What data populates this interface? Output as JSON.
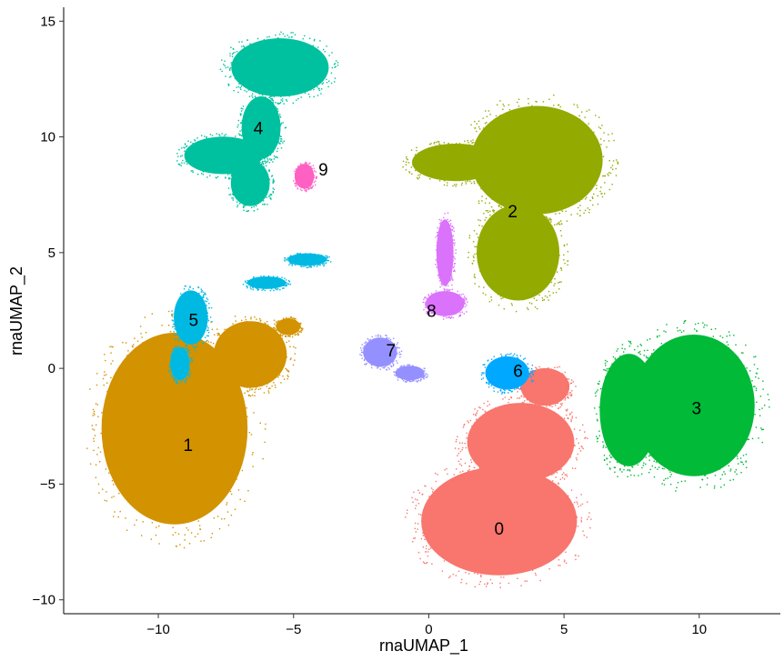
{
  "chart_data": {
    "type": "scatter",
    "title": "",
    "xlabel": "rnaUMAP_1",
    "ylabel": "rnaUMAP_2",
    "xlim": [
      -13.5,
      13
    ],
    "ylim": [
      -10.6,
      15.6
    ],
    "x_ticks": [
      -10,
      -5,
      0,
      5,
      10
    ],
    "x_tick_labels": [
      "−10",
      "−5",
      "0",
      "5",
      "10"
    ],
    "y_ticks": [
      -10,
      -5,
      0,
      5,
      10,
      15
    ],
    "y_tick_labels": [
      "−10",
      "−5",
      "0",
      "5",
      "10",
      "15"
    ],
    "grid": false,
    "legend": "none",
    "clusters": [
      {
        "name": "0",
        "color": "#F8766D",
        "label_pos": [
          2.6,
          -6.9
        ],
        "lobes": [
          {
            "cx": 2.6,
            "cy": -6.6,
            "rx": 3.2,
            "ry": 2.6
          },
          {
            "cx": 3.4,
            "cy": -3.2,
            "rx": 2.2,
            "ry": 1.9
          },
          {
            "cx": 4.3,
            "cy": -0.8,
            "rx": 1.0,
            "ry": 0.9
          }
        ]
      },
      {
        "name": "1",
        "color": "#D39200",
        "label_pos": [
          -8.9,
          -3.3
        ],
        "lobes": [
          {
            "cx": -9.4,
            "cy": -2.6,
            "rx": 3.0,
            "ry": 4.6
          },
          {
            "cx": -6.6,
            "cy": 0.6,
            "rx": 1.5,
            "ry": 1.6
          },
          {
            "cx": -5.2,
            "cy": 1.8,
            "rx": 0.5,
            "ry": 0.4
          }
        ]
      },
      {
        "name": "2",
        "color": "#93AA00",
        "label_pos": [
          3.1,
          6.8
        ],
        "lobes": [
          {
            "cx": 4.0,
            "cy": 9.0,
            "rx": 2.7,
            "ry": 2.6
          },
          {
            "cx": 3.3,
            "cy": 5.0,
            "rx": 1.7,
            "ry": 2.3
          },
          {
            "cx": 1.0,
            "cy": 8.9,
            "rx": 1.8,
            "ry": 0.9
          }
        ]
      },
      {
        "name": "3",
        "color": "#00BA38",
        "label_pos": [
          9.9,
          -1.7
        ],
        "lobes": [
          {
            "cx": 9.8,
            "cy": -1.6,
            "rx": 2.5,
            "ry": 3.4
          },
          {
            "cx": 7.4,
            "cy": -1.8,
            "rx": 1.2,
            "ry": 2.7
          }
        ]
      },
      {
        "name": "4",
        "color": "#00C19F",
        "label_pos": [
          -6.3,
          10.4
        ],
        "lobes": [
          {
            "cx": -5.5,
            "cy": 13.0,
            "rx": 2.0,
            "ry": 1.4
          },
          {
            "cx": -6.2,
            "cy": 10.4,
            "rx": 0.8,
            "ry": 1.5
          },
          {
            "cx": -7.6,
            "cy": 9.2,
            "rx": 1.6,
            "ry": 0.9
          },
          {
            "cx": -6.6,
            "cy": 8.0,
            "rx": 0.8,
            "ry": 1.1
          }
        ]
      },
      {
        "name": "5",
        "color": "#00B9E3",
        "label_pos": [
          -8.7,
          2.1
        ],
        "lobes": [
          {
            "cx": -8.8,
            "cy": 2.2,
            "rx": 0.7,
            "ry": 1.3
          },
          {
            "cx": -9.2,
            "cy": 0.2,
            "rx": 0.4,
            "ry": 0.8
          },
          {
            "cx": -6.0,
            "cy": 3.7,
            "rx": 0.8,
            "ry": 0.3
          },
          {
            "cx": -4.5,
            "cy": 4.7,
            "rx": 0.8,
            "ry": 0.3
          }
        ]
      },
      {
        "name": "6",
        "color": "#00A9FF",
        "label_pos": [
          3.3,
          -0.1
        ],
        "lobes": [
          {
            "cx": 2.9,
            "cy": -0.2,
            "rx": 0.9,
            "ry": 0.8
          }
        ]
      },
      {
        "name": "7",
        "color": "#9590FF",
        "label_pos": [
          -1.4,
          0.8
        ],
        "lobes": [
          {
            "cx": -1.8,
            "cy": 0.7,
            "rx": 0.7,
            "ry": 0.7
          },
          {
            "cx": -0.7,
            "cy": -0.2,
            "rx": 0.6,
            "ry": 0.35
          }
        ]
      },
      {
        "name": "8",
        "color": "#DB72FB",
        "label_pos": [
          0.1,
          2.5
        ],
        "lobes": [
          {
            "cx": 0.6,
            "cy": 2.8,
            "rx": 0.8,
            "ry": 0.6
          },
          {
            "cx": 0.6,
            "cy": 5.0,
            "rx": 0.35,
            "ry": 1.6
          }
        ]
      },
      {
        "name": "9",
        "color": "#FF61C3",
        "label_pos": [
          -3.9,
          8.6
        ],
        "lobes": [
          {
            "cx": -4.6,
            "cy": 8.3,
            "rx": 0.4,
            "ry": 0.6
          }
        ]
      }
    ]
  }
}
